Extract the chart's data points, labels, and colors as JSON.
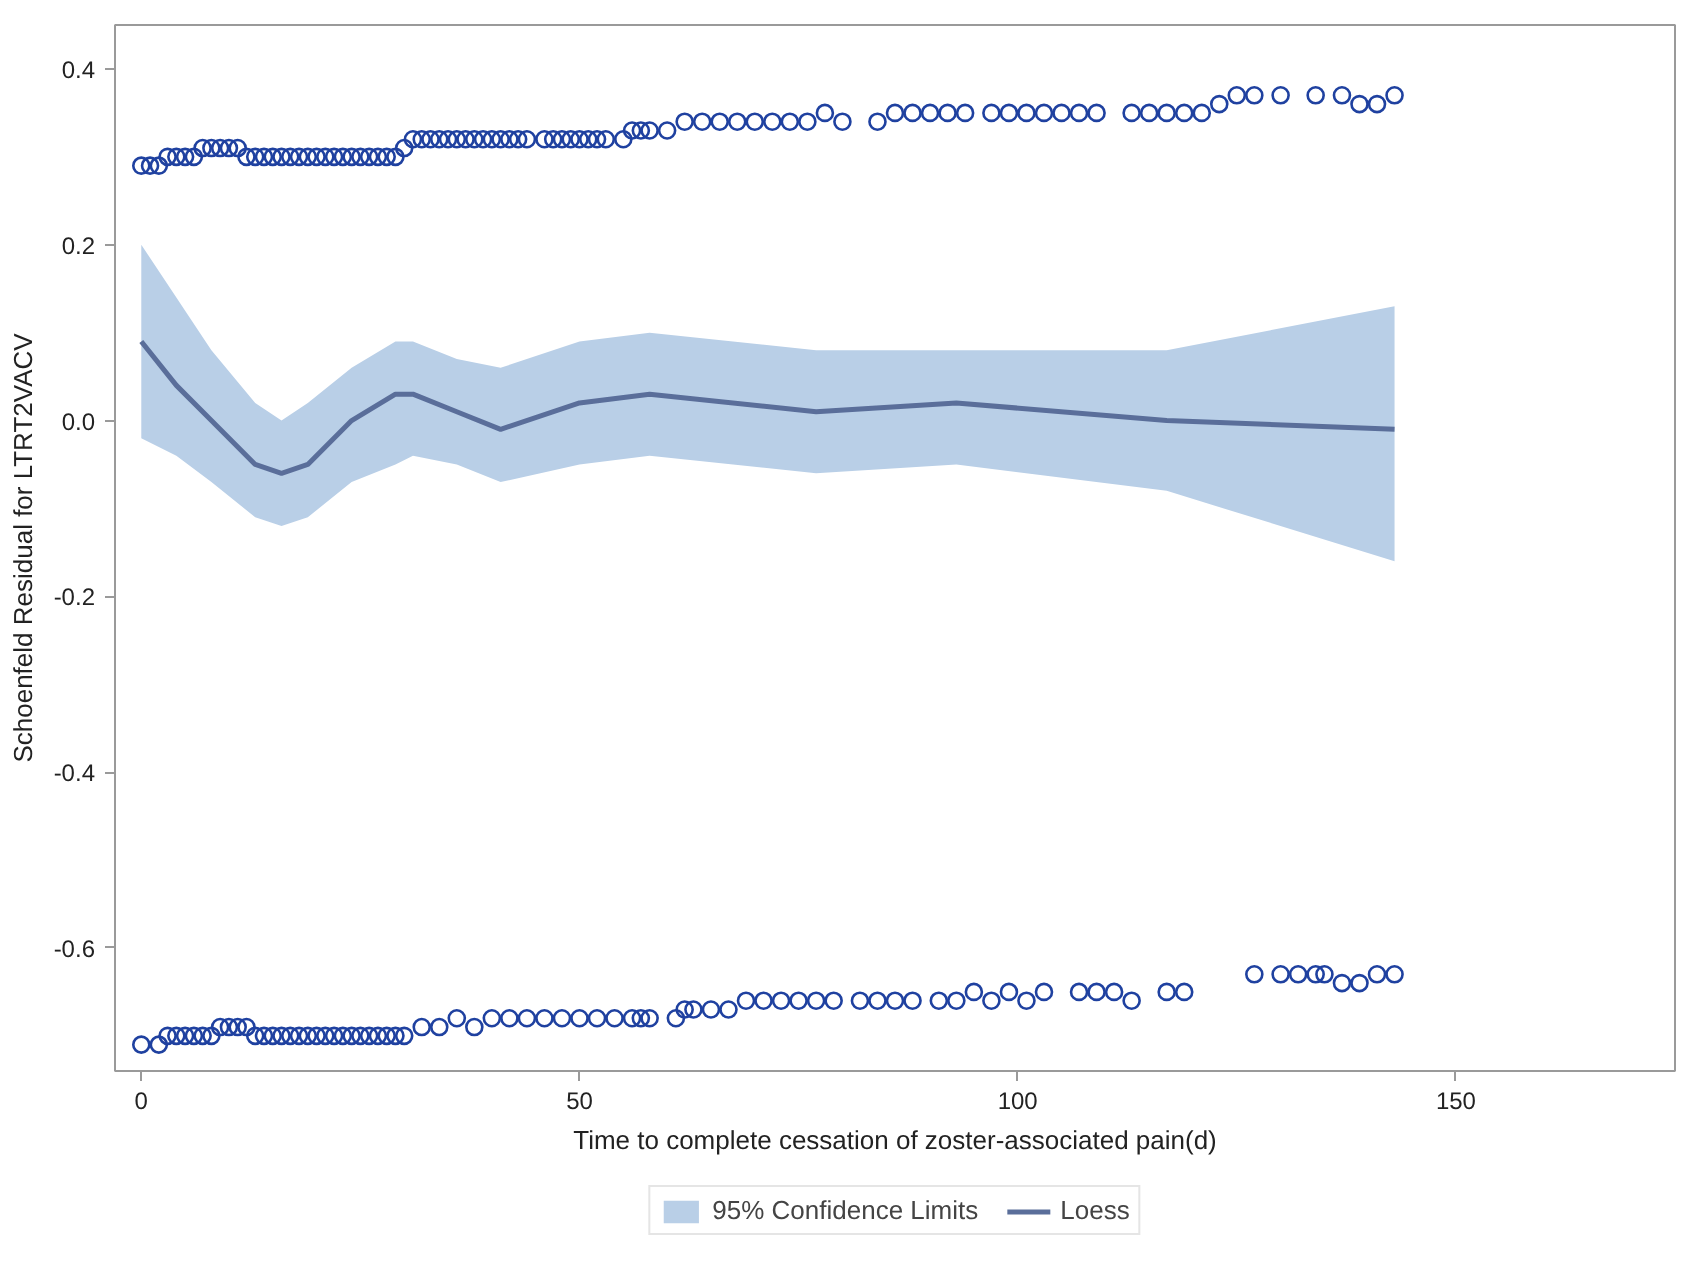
{
  "chart_data": {
    "type": "scatter",
    "xlabel": "Time to complete cessation of zoster-associated pain(d)",
    "ylabel": "Schoenfeld Residual for LTRT2VACV",
    "xlim": [
      -3,
      175
    ],
    "ylim": [
      -0.74,
      0.45
    ],
    "xticks": [
      0,
      50,
      100,
      150
    ],
    "yticks": [
      {
        "value": 0.4,
        "label": "0.4"
      },
      {
        "value": 0.2,
        "label": "0.2"
      },
      {
        "value": 0,
        "label": "0.0"
      },
      {
        "value": -0.2,
        "label": "-0.2"
      },
      {
        "value": -0.4,
        "label": "-0.4"
      },
      {
        "value": -0.6,
        "label": "-0.6"
      }
    ],
    "grid": false,
    "legend": "bottom",
    "marker": "circle",
    "series": [
      {
        "type": "area",
        "name": "95% Confidence Limits",
        "color": "#b9cfe7",
        "x": [
          0,
          4,
          8,
          13,
          16,
          19,
          24,
          29,
          31,
          36,
          41,
          50,
          58,
          77,
          93,
          117,
          143
        ],
        "values": [
          null,
          null,
          null,
          null,
          null,
          null,
          null,
          null,
          null,
          null,
          null,
          null,
          null,
          null,
          null,
          null,
          null
        ],
        "lower": [
          -0.02,
          -0.04,
          -0.07,
          -0.11,
          -0.12,
          -0.11,
          -0.07,
          -0.05,
          -0.04,
          -0.05,
          -0.07,
          -0.05,
          -0.04,
          -0.06,
          -0.05,
          -0.08,
          -0.16
        ],
        "upper": [
          0.2,
          0.14,
          0.08,
          0.02,
          0.0,
          0.02,
          0.06,
          0.09,
          0.09,
          0.07,
          0.06,
          0.09,
          0.1,
          0.08,
          0.08,
          0.08,
          0.13
        ]
      },
      {
        "type": "line",
        "name": "Loess",
        "color": "#5a6e9a",
        "marker": "none",
        "line_style": "solid",
        "x": [
          0,
          4,
          8,
          13,
          16,
          19,
          24,
          29,
          31,
          36,
          41,
          50,
          58,
          77,
          93,
          117,
          143
        ],
        "values": [
          0.09,
          0.04,
          0.0,
          -0.05,
          -0.06,
          -0.05,
          0.0,
          0.03,
          0.03,
          0.01,
          -0.01,
          0.02,
          0.03,
          0.01,
          0.02,
          0.0,
          -0.01
        ]
      },
      {
        "color": "#1f41a0",
        "x": [
          0,
          1,
          2,
          3,
          4,
          5,
          6,
          7,
          8,
          9,
          10,
          11,
          12,
          13,
          14,
          15,
          16,
          17,
          18,
          19,
          20,
          21,
          22,
          23,
          24,
          25,
          26,
          27,
          28,
          29,
          30,
          31,
          32,
          33,
          34,
          35,
          36,
          37,
          38,
          39,
          40,
          41,
          42,
          43,
          44,
          46,
          47,
          48,
          49,
          50,
          51,
          52,
          53,
          55,
          56,
          57,
          58,
          60,
          62,
          64,
          66,
          68,
          70,
          72,
          74,
          76,
          78,
          80,
          84,
          86,
          88,
          90,
          92,
          94,
          97,
          99,
          101,
          103,
          105,
          107,
          109,
          113,
          115,
          117,
          119,
          121,
          123,
          125,
          127,
          130,
          134,
          137,
          139,
          141,
          143
        ],
        "values": [
          0.29,
          0.29,
          0.29,
          0.3,
          0.3,
          0.3,
          0.3,
          0.31,
          0.31,
          0.31,
          0.31,
          0.31,
          0.3,
          0.3,
          0.3,
          0.3,
          0.3,
          0.3,
          0.3,
          0.3,
          0.3,
          0.3,
          0.3,
          0.3,
          0.3,
          0.3,
          0.3,
          0.3,
          0.3,
          0.3,
          0.31,
          0.32,
          0.32,
          0.32,
          0.32,
          0.32,
          0.32,
          0.32,
          0.32,
          0.32,
          0.32,
          0.32,
          0.32,
          0.32,
          0.32,
          0.32,
          0.32,
          0.32,
          0.32,
          0.32,
          0.32,
          0.32,
          0.32,
          0.32,
          0.33,
          0.33,
          0.33,
          0.33,
          0.34,
          0.34,
          0.34,
          0.34,
          0.34,
          0.34,
          0.34,
          0.34,
          0.35,
          0.34,
          0.34,
          0.35,
          0.35,
          0.35,
          0.35,
          0.35,
          0.35,
          0.35,
          0.35,
          0.35,
          0.35,
          0.35,
          0.35,
          0.35,
          0.35,
          0.35,
          0.35,
          0.35,
          0.36,
          0.37,
          0.37,
          0.37,
          0.37,
          0.37,
          0.36,
          0.36,
          0.37
        ]
      },
      {
        "color": "#1f41a0",
        "x": [
          0,
          2,
          3,
          4,
          5,
          6,
          7,
          8,
          9,
          10,
          11,
          12,
          13,
          14,
          15,
          16,
          17,
          18,
          19,
          20,
          21,
          22,
          23,
          24,
          25,
          26,
          27,
          28,
          29,
          30,
          32,
          34,
          36,
          38,
          40,
          42,
          44,
          46,
          48,
          50,
          52,
          54,
          56,
          57,
          58,
          61,
          62,
          63,
          65,
          67,
          69,
          71,
          73,
          75,
          77,
          79,
          82,
          84,
          86,
          88,
          91,
          93,
          95,
          97,
          99,
          101,
          103,
          107,
          109,
          111,
          113,
          117,
          119,
          127,
          130,
          132,
          134,
          135,
          137,
          139,
          141,
          143
        ],
        "values": [
          -0.71,
          -0.71,
          -0.7,
          -0.7,
          -0.7,
          -0.7,
          -0.7,
          -0.7,
          -0.69,
          -0.69,
          -0.69,
          -0.69,
          -0.7,
          -0.7,
          -0.7,
          -0.7,
          -0.7,
          -0.7,
          -0.7,
          -0.7,
          -0.7,
          -0.7,
          -0.7,
          -0.7,
          -0.7,
          -0.7,
          -0.7,
          -0.7,
          -0.7,
          -0.7,
          -0.69,
          -0.69,
          -0.68,
          -0.69,
          -0.68,
          -0.68,
          -0.68,
          -0.68,
          -0.68,
          -0.68,
          -0.68,
          -0.68,
          -0.68,
          -0.68,
          -0.68,
          -0.68,
          -0.67,
          -0.67,
          -0.67,
          -0.67,
          -0.66,
          -0.66,
          -0.66,
          -0.66,
          -0.66,
          -0.66,
          -0.66,
          -0.66,
          -0.66,
          -0.66,
          -0.66,
          -0.66,
          -0.65,
          -0.66,
          -0.65,
          -0.66,
          -0.65,
          -0.65,
          -0.65,
          -0.65,
          -0.66,
          -0.65,
          -0.65,
          -0.63,
          -0.63,
          -0.63,
          -0.63,
          -0.63,
          -0.64,
          -0.64,
          -0.63,
          -0.63
        ]
      }
    ]
  }
}
